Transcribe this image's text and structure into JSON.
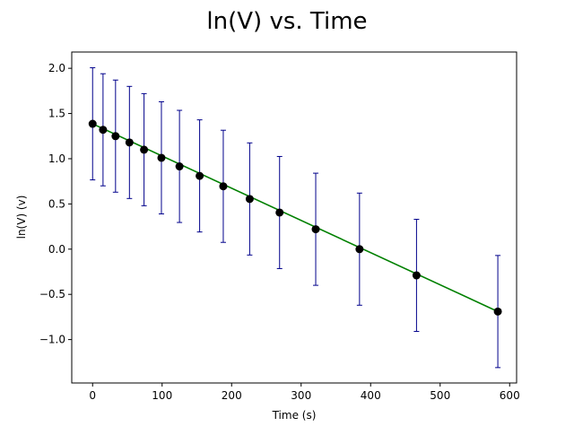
{
  "chart_data": {
    "type": "scatter",
    "title": "ln(V) vs. Time",
    "xlabel": "Time (s)",
    "ylabel": "ln(V) (v)",
    "xlim": [
      -30,
      610
    ],
    "ylim": [
      -1.48,
      2.18
    ],
    "xticks": [
      0,
      100,
      200,
      300,
      400,
      500,
      600
    ],
    "xtick_labels": [
      "0",
      "100",
      "200",
      "300",
      "400",
      "500",
      "600"
    ],
    "yticks": [
      -1.0,
      -0.5,
      0.0,
      0.5,
      1.0,
      1.5,
      2.0
    ],
    "ytick_labels": [
      "−1.0",
      "−0.5",
      "0.0",
      "0.5",
      "1.0",
      "1.5",
      "2.0"
    ],
    "grid": false,
    "series": [
      {
        "points": [
          {
            "x": 0,
            "y": 1.386,
            "err": 0.62
          },
          {
            "x": 15,
            "y": 1.32,
            "err": 0.62
          },
          {
            "x": 33,
            "y": 1.25,
            "err": 0.62
          },
          {
            "x": 53,
            "y": 1.18,
            "err": 0.62
          },
          {
            "x": 74,
            "y": 1.1,
            "err": 0.62
          },
          {
            "x": 99,
            "y": 1.01,
            "err": 0.62
          },
          {
            "x": 125,
            "y": 0.915,
            "err": 0.62
          },
          {
            "x": 154,
            "y": 0.81,
            "err": 0.62
          },
          {
            "x": 188,
            "y": 0.695,
            "err": 0.62
          },
          {
            "x": 226,
            "y": 0.555,
            "err": 0.62
          },
          {
            "x": 269,
            "y": 0.405,
            "err": 0.62
          },
          {
            "x": 321,
            "y": 0.22,
            "err": 0.62
          },
          {
            "x": 384,
            "y": 0.0,
            "err": 0.62
          },
          {
            "x": 466,
            "y": -0.29,
            "err": 0.62
          },
          {
            "x": 583,
            "y": -0.69,
            "err": 0.62
          }
        ]
      }
    ],
    "fit_line": {
      "x": [
        0,
        583
      ],
      "y": [
        1.386,
        -0.69
      ]
    },
    "colors": {
      "marker": "#000000",
      "errorbar": "#00008b",
      "fit_line": "#008000",
      "axes": "#000000"
    }
  }
}
